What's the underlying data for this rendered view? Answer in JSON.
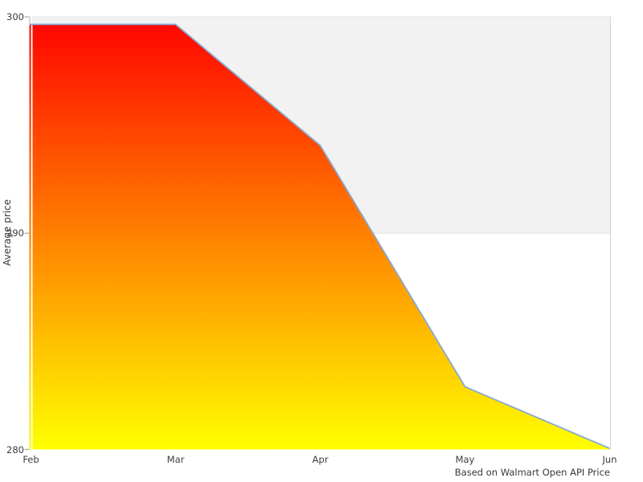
{
  "chart_data": {
    "type": "area",
    "title": "",
    "xlabel": "",
    "ylabel": "Average price",
    "caption": "Based on Walmart Open API Price",
    "categories": [
      "Feb",
      "Mar",
      "Apr",
      "May",
      "Jun"
    ],
    "series_name": "Average price",
    "values": [
      299.65,
      299.65,
      294.05,
      282.9,
      280.05
    ],
    "ylim": [
      280,
      300
    ],
    "yticks": [
      280,
      290,
      300
    ],
    "legend": false,
    "grid": "single horizontal gridline at 290",
    "plot_band": {
      "from": 290,
      "to": 300
    },
    "colors": {
      "fill_top": "#ff0600",
      "fill_bottom": "#ffff00",
      "line": "#86a9d2",
      "band_fill": "#f2f2f2",
      "border": "#e4e4e4",
      "right_spine": "#d6d6d6",
      "left_spine": "#cccccc",
      "tick": "#aaaaaa",
      "text": "#3c3c3c",
      "background": "#ffffff"
    }
  }
}
